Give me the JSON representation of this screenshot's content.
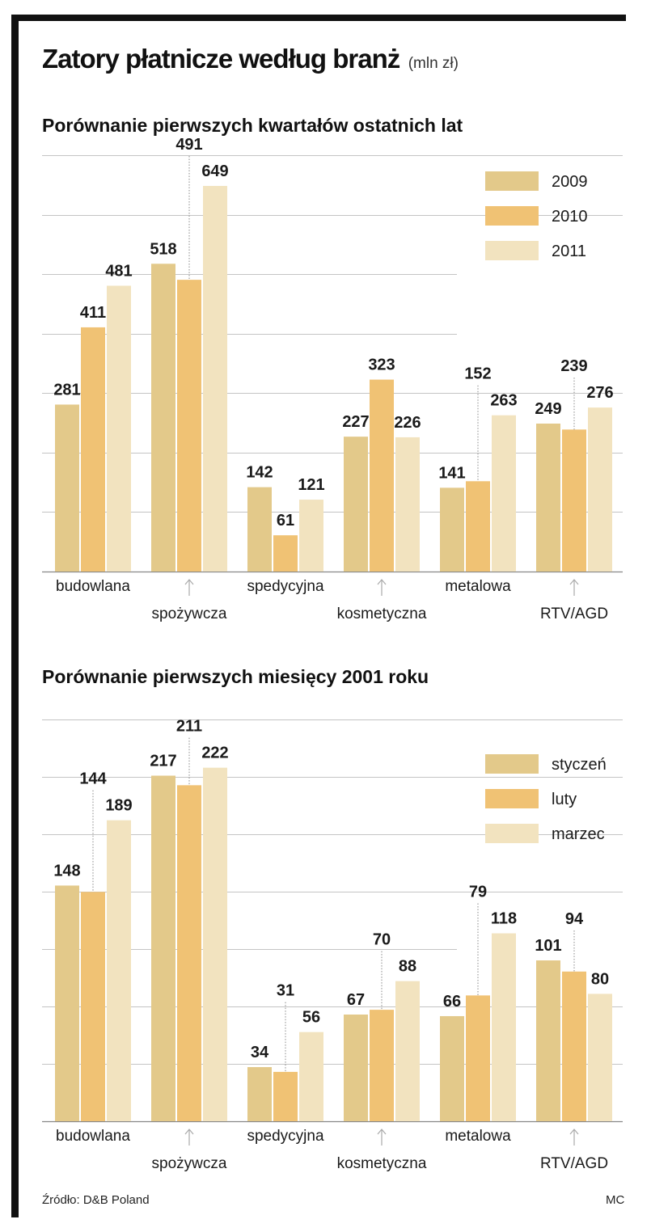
{
  "header": {
    "title": "Zatory płatnicze według branż",
    "units": "(mln zł)"
  },
  "colors": {
    "series1": "#e3c98a",
    "series2": "#f0c274",
    "series3": "#f2e3bf",
    "grid": "#b0b0b0",
    "frame": "#111111"
  },
  "chart_data": [
    {
      "type": "bar",
      "title": "Porównanie pierwszych kwartałów ostatnich lat",
      "categories": [
        "budowlana",
        "spożywcza",
        "spedycyjna",
        "kosmetyczna",
        "metalowa",
        "RTV/AGD"
      ],
      "series": [
        {
          "name": "2009",
          "values": [
            281,
            518,
            142,
            227,
            141,
            249
          ]
        },
        {
          "name": "2010",
          "values": [
            411,
            491,
            61,
            323,
            152,
            239
          ]
        },
        {
          "name": "2011",
          "values": [
            481,
            649,
            121,
            226,
            263,
            276
          ]
        }
      ],
      "ylim": [
        0,
        700
      ],
      "grid": true,
      "legend": "top-right"
    },
    {
      "type": "bar",
      "title": "Porównanie pierwszych miesięcy 2001 roku",
      "categories": [
        "budowlana",
        "spożywcza",
        "spedycyjna",
        "kosmetyczna",
        "metalowa",
        "RTV/AGD"
      ],
      "series": [
        {
          "name": "styczeń",
          "values": [
            148,
            217,
            34,
            67,
            66,
            101
          ]
        },
        {
          "name": "luty",
          "values": [
            144,
            211,
            31,
            70,
            79,
            94
          ]
        },
        {
          "name": "marzec",
          "values": [
            189,
            222,
            56,
            88,
            118,
            80
          ]
        }
      ],
      "ylim": [
        0,
        250
      ],
      "grid": true,
      "legend": "top-right"
    }
  ],
  "footer": {
    "source": "Źródło: D&B Poland",
    "credit": "MC"
  }
}
